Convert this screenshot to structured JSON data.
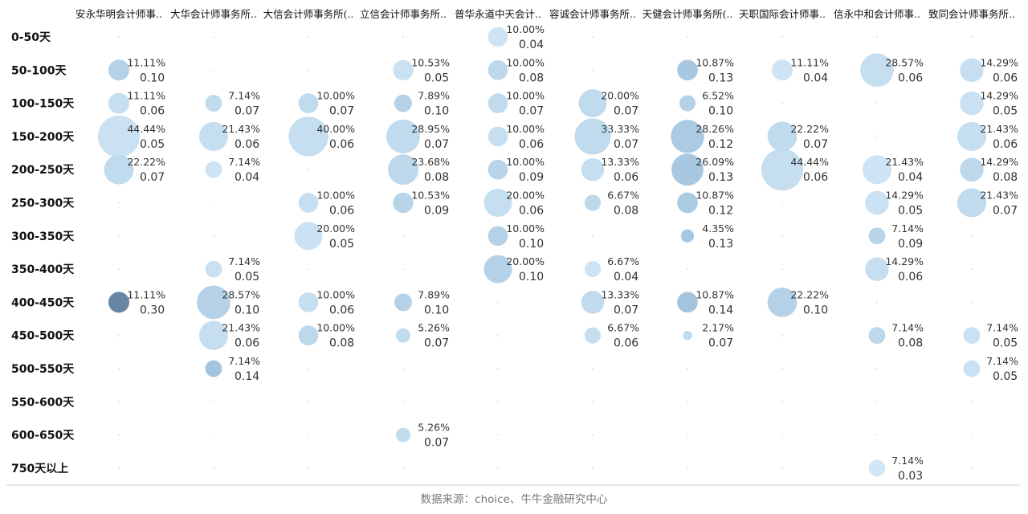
{
  "chart_data": {
    "type": "scatter",
    "columns": [
      "安永华明会计师事..",
      "大华会计师事务所..",
      "大信会计师事务所(..",
      "立信会计师事务所..",
      "普华永道中天会计..",
      "容诚会计师事务所..",
      "天健会计师事务所(..",
      "天职国际会计师事..",
      "信永中和会计师事..",
      "致同会计师事务所.."
    ],
    "rows": [
      "0-50天",
      "50-100天",
      "100-150天",
      "150-200天",
      "200-250天",
      "250-300天",
      "300-350天",
      "350-400天",
      "400-450天",
      "450-500天",
      "500-550天",
      "550-600天",
      "600-650天",
      "750天以上"
    ],
    "points": [
      {
        "col": 0,
        "row": 1,
        "pct": "11.11%",
        "pct_value": 11.11,
        "value": "0.10",
        "val": 0.1
      },
      {
        "col": 0,
        "row": 2,
        "pct": "11.11%",
        "pct_value": 11.11,
        "value": "0.06",
        "val": 0.06
      },
      {
        "col": 0,
        "row": 3,
        "pct": "44.44%",
        "pct_value": 44.44,
        "value": "0.05",
        "val": 0.05
      },
      {
        "col": 0,
        "row": 4,
        "pct": "22.22%",
        "pct_value": 22.22,
        "value": "0.07",
        "val": 0.07
      },
      {
        "col": 0,
        "row": 8,
        "pct": "11.11%",
        "pct_value": 11.11,
        "value": "0.30",
        "val": 0.3
      },
      {
        "col": 1,
        "row": 2,
        "pct": "7.14%",
        "pct_value": 7.14,
        "value": "0.07",
        "val": 0.07
      },
      {
        "col": 1,
        "row": 3,
        "pct": "21.43%",
        "pct_value": 21.43,
        "value": "0.06",
        "val": 0.06
      },
      {
        "col": 1,
        "row": 4,
        "pct": "7.14%",
        "pct_value": 7.14,
        "value": "0.04",
        "val": 0.04
      },
      {
        "col": 1,
        "row": 7,
        "pct": "7.14%",
        "pct_value": 7.14,
        "value": "0.05",
        "val": 0.05
      },
      {
        "col": 1,
        "row": 8,
        "pct": "28.57%",
        "pct_value": 28.57,
        "value": "0.10",
        "val": 0.1
      },
      {
        "col": 1,
        "row": 9,
        "pct": "21.43%",
        "pct_value": 21.43,
        "value": "0.06",
        "val": 0.06
      },
      {
        "col": 1,
        "row": 10,
        "pct": "7.14%",
        "pct_value": 7.14,
        "value": "0.14",
        "val": 0.14
      },
      {
        "col": 2,
        "row": 2,
        "pct": "10.00%",
        "pct_value": 10.0,
        "value": "0.07",
        "val": 0.07
      },
      {
        "col": 2,
        "row": 3,
        "pct": "40.00%",
        "pct_value": 40.0,
        "value": "0.06",
        "val": 0.06
      },
      {
        "col": 2,
        "row": 5,
        "pct": "10.00%",
        "pct_value": 10.0,
        "value": "0.06",
        "val": 0.06
      },
      {
        "col": 2,
        "row": 6,
        "pct": "20.00%",
        "pct_value": 20.0,
        "value": "0.05",
        "val": 0.05
      },
      {
        "col": 2,
        "row": 8,
        "pct": "10.00%",
        "pct_value": 10.0,
        "value": "0.06",
        "val": 0.06
      },
      {
        "col": 2,
        "row": 9,
        "pct": "10.00%",
        "pct_value": 10.0,
        "value": "0.08",
        "val": 0.08
      },
      {
        "col": 3,
        "row": 1,
        "pct": "10.53%",
        "pct_value": 10.53,
        "value": "0.05",
        "val": 0.05
      },
      {
        "col": 3,
        "row": 2,
        "pct": "7.89%",
        "pct_value": 7.89,
        "value": "0.10",
        "val": 0.1
      },
      {
        "col": 3,
        "row": 3,
        "pct": "28.95%",
        "pct_value": 28.95,
        "value": "0.07",
        "val": 0.07
      },
      {
        "col": 3,
        "row": 4,
        "pct": "23.68%",
        "pct_value": 23.68,
        "value": "0.08",
        "val": 0.08
      },
      {
        "col": 3,
        "row": 5,
        "pct": "10.53%",
        "pct_value": 10.53,
        "value": "0.09",
        "val": 0.09
      },
      {
        "col": 3,
        "row": 8,
        "pct": "7.89%",
        "pct_value": 7.89,
        "value": "0.10",
        "val": 0.1
      },
      {
        "col": 3,
        "row": 9,
        "pct": "5.26%",
        "pct_value": 5.26,
        "value": "0.07",
        "val": 0.07
      },
      {
        "col": 3,
        "row": 12,
        "pct": "5.26%",
        "pct_value": 5.26,
        "value": "0.07",
        "val": 0.07
      },
      {
        "col": 4,
        "row": 0,
        "pct": "10.00%",
        "pct_value": 10.0,
        "value": "0.04",
        "val": 0.04
      },
      {
        "col": 4,
        "row": 1,
        "pct": "10.00%",
        "pct_value": 10.0,
        "value": "0.08",
        "val": 0.08
      },
      {
        "col": 4,
        "row": 2,
        "pct": "10.00%",
        "pct_value": 10.0,
        "value": "0.07",
        "val": 0.07
      },
      {
        "col": 4,
        "row": 3,
        "pct": "10.00%",
        "pct_value": 10.0,
        "value": "0.06",
        "val": 0.06
      },
      {
        "col": 4,
        "row": 4,
        "pct": "10.00%",
        "pct_value": 10.0,
        "value": "0.09",
        "val": 0.09
      },
      {
        "col": 4,
        "row": 5,
        "pct": "20.00%",
        "pct_value": 20.0,
        "value": "0.06",
        "val": 0.06
      },
      {
        "col": 4,
        "row": 6,
        "pct": "10.00%",
        "pct_value": 10.0,
        "value": "0.10",
        "val": 0.1
      },
      {
        "col": 4,
        "row": 7,
        "pct": "20.00%",
        "pct_value": 20.0,
        "value": "0.10",
        "val": 0.1
      },
      {
        "col": 5,
        "row": 2,
        "pct": "20.00%",
        "pct_value": 20.0,
        "value": "0.07",
        "val": 0.07
      },
      {
        "col": 5,
        "row": 3,
        "pct": "33.33%",
        "pct_value": 33.33,
        "value": "0.07",
        "val": 0.07
      },
      {
        "col": 5,
        "row": 4,
        "pct": "13.33%",
        "pct_value": 13.33,
        "value": "0.06",
        "val": 0.06
      },
      {
        "col": 5,
        "row": 5,
        "pct": "6.67%",
        "pct_value": 6.67,
        "value": "0.08",
        "val": 0.08
      },
      {
        "col": 5,
        "row": 7,
        "pct": "6.67%",
        "pct_value": 6.67,
        "value": "0.04",
        "val": 0.04
      },
      {
        "col": 5,
        "row": 8,
        "pct": "13.33%",
        "pct_value": 13.33,
        "value": "0.07",
        "val": 0.07
      },
      {
        "col": 5,
        "row": 9,
        "pct": "6.67%",
        "pct_value": 6.67,
        "value": "0.06",
        "val": 0.06
      },
      {
        "col": 6,
        "row": 1,
        "pct": "10.87%",
        "pct_value": 10.87,
        "value": "0.13",
        "val": 0.13
      },
      {
        "col": 6,
        "row": 2,
        "pct": "6.52%",
        "pct_value": 6.52,
        "value": "0.10",
        "val": 0.1
      },
      {
        "col": 6,
        "row": 3,
        "pct": "28.26%",
        "pct_value": 28.26,
        "value": "0.12",
        "val": 0.12
      },
      {
        "col": 6,
        "row": 4,
        "pct": "26.09%",
        "pct_value": 26.09,
        "value": "0.13",
        "val": 0.13
      },
      {
        "col": 6,
        "row": 5,
        "pct": "10.87%",
        "pct_value": 10.87,
        "value": "0.12",
        "val": 0.12
      },
      {
        "col": 6,
        "row": 6,
        "pct": "4.35%",
        "pct_value": 4.35,
        "value": "0.13",
        "val": 0.13
      },
      {
        "col": 6,
        "row": 8,
        "pct": "10.87%",
        "pct_value": 10.87,
        "value": "0.14",
        "val": 0.14
      },
      {
        "col": 6,
        "row": 9,
        "pct": "2.17%",
        "pct_value": 2.17,
        "value": "0.07",
        "val": 0.07
      },
      {
        "col": 7,
        "row": 1,
        "pct": "11.11%",
        "pct_value": 11.11,
        "value": "0.04",
        "val": 0.04
      },
      {
        "col": 7,
        "row": 3,
        "pct": "22.22%",
        "pct_value": 22.22,
        "value": "0.07",
        "val": 0.07
      },
      {
        "col": 7,
        "row": 4,
        "pct": "44.44%",
        "pct_value": 44.44,
        "value": "0.06",
        "val": 0.06
      },
      {
        "col": 7,
        "row": 8,
        "pct": "22.22%",
        "pct_value": 22.22,
        "value": "0.10",
        "val": 0.1
      },
      {
        "col": 8,
        "row": 1,
        "pct": "28.57%",
        "pct_value": 28.57,
        "value": "0.06",
        "val": 0.06
      },
      {
        "col": 8,
        "row": 4,
        "pct": "21.43%",
        "pct_value": 21.43,
        "value": "0.04",
        "val": 0.04
      },
      {
        "col": 8,
        "row": 5,
        "pct": "14.29%",
        "pct_value": 14.29,
        "value": "0.05",
        "val": 0.05
      },
      {
        "col": 8,
        "row": 6,
        "pct": "7.14%",
        "pct_value": 7.14,
        "value": "0.09",
        "val": 0.09
      },
      {
        "col": 8,
        "row": 7,
        "pct": "14.29%",
        "pct_value": 14.29,
        "value": "0.06",
        "val": 0.06
      },
      {
        "col": 8,
        "row": 9,
        "pct": "7.14%",
        "pct_value": 7.14,
        "value": "0.08",
        "val": 0.08
      },
      {
        "col": 8,
        "row": 13,
        "pct": "7.14%",
        "pct_value": 7.14,
        "value": "0.03",
        "val": 0.03
      },
      {
        "col": 9,
        "row": 1,
        "pct": "14.29%",
        "pct_value": 14.29,
        "value": "0.06",
        "val": 0.06
      },
      {
        "col": 9,
        "row": 2,
        "pct": "14.29%",
        "pct_value": 14.29,
        "value": "0.05",
        "val": 0.05
      },
      {
        "col": 9,
        "row": 3,
        "pct": "21.43%",
        "pct_value": 21.43,
        "value": "0.06",
        "val": 0.06
      },
      {
        "col": 9,
        "row": 4,
        "pct": "14.29%",
        "pct_value": 14.29,
        "value": "0.08",
        "val": 0.08
      },
      {
        "col": 9,
        "row": 5,
        "pct": "21.43%",
        "pct_value": 21.43,
        "value": "0.07",
        "val": 0.07
      },
      {
        "col": 9,
        "row": 9,
        "pct": "7.14%",
        "pct_value": 7.14,
        "value": "0.05",
        "val": 0.05
      },
      {
        "col": 9,
        "row": 10,
        "pct": "7.14%",
        "pct_value": 7.14,
        "value": "0.05",
        "val": 0.05
      }
    ],
    "size_encoding": "percentage",
    "color_encoding": "value",
    "color_scale": {
      "low": "#cfe6f5",
      "mid": "#a7c8e2",
      "high": "#5f7f9f"
    },
    "grid": false,
    "source": "数据来源：choice、牛牛金融研究中心"
  }
}
